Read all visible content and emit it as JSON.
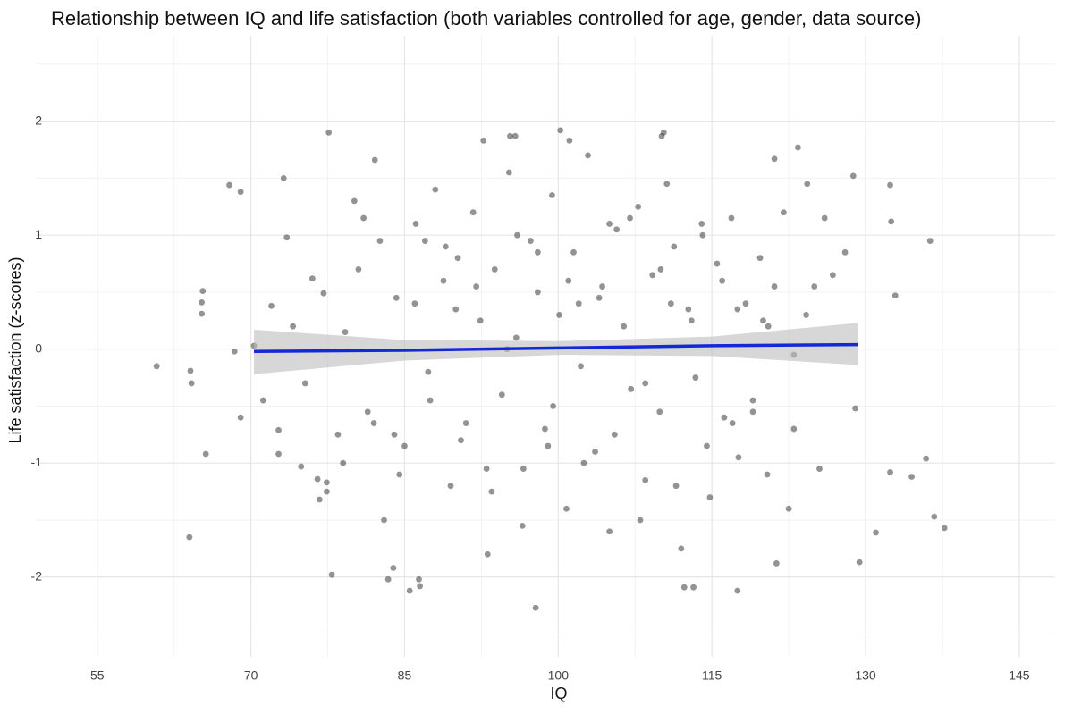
{
  "chart_data": {
    "type": "scatter",
    "title": "Relationship between IQ and life satisfaction (both variables controlled for age, gender, data source)",
    "x_label": "IQ",
    "y_label": "Life satisfaction (z-scores)",
    "xlim": [
      49,
      148.5
    ],
    "ylim": [
      -2.7,
      2.75
    ],
    "xticks": [
      55,
      70,
      85,
      100,
      115,
      130,
      145
    ],
    "yticks": [
      -2,
      -1,
      0,
      1,
      2
    ],
    "xminor": [
      62.5,
      77.5,
      92.5,
      107.5,
      122.5,
      137.5
    ],
    "yminor": [
      -2.5,
      -1.5,
      -0.5,
      0.5,
      1.5,
      2.5
    ],
    "grid": true,
    "color": "#3a3a3a",
    "x": [
      60.8,
      64.1,
      64.2,
      64.0,
      65.3,
      65.2,
      65.2,
      65.6,
      67.9,
      69.0,
      68.4,
      69.0,
      70.3,
      73.2,
      73.5,
      72.7,
      72.7,
      77.6,
      77.9,
      77.1,
      74.9,
      76.5,
      76.7,
      77.4,
      77.4,
      82.1,
      83.4,
      83.9,
      86.5,
      86.4,
      85.5,
      92.7,
      95.3,
      95.8,
      100.2,
      101.1,
      97.8,
      110.1,
      110.3,
      121.1,
      123.4,
      124.3,
      128.8,
      132.4,
      132.5,
      132.9,
      136.3,
      131.0,
      132.4,
      134.5,
      135.9,
      136.7,
      137.7,
      129.4,
      129.0,
      117.5,
      121.3,
      112.3,
      113.2,
      71.2,
      72.0,
      74.1,
      75.3,
      76.0,
      78.5,
      79.2,
      80.1,
      81.4,
      82.6,
      83.0,
      84.2,
      85.0,
      86.1,
      87.3,
      88.0,
      88.8,
      89.5,
      90.2,
      91.0,
      91.7,
      92.4,
      93.1,
      93.8,
      94.5,
      95.2,
      95.9,
      96.6,
      97.3,
      98.0,
      98.7,
      99.4,
      100.1,
      100.8,
      101.5,
      102.2,
      102.9,
      103.6,
      104.3,
      105.0,
      105.7,
      106.4,
      107.1,
      107.8,
      108.5,
      109.2,
      109.9,
      110.6,
      111.3,
      112.0,
      112.7,
      113.4,
      114.1,
      114.8,
      115.5,
      116.2,
      116.9,
      117.6,
      118.3,
      119.0,
      119.7,
      120.4,
      121.1,
      122.0,
      123.0,
      124.2,
      125.5,
      126.8,
      128.0,
      79.0,
      80.5,
      82.0,
      84.5,
      86.0,
      87.5,
      89.0,
      90.5,
      92.0,
      93.5,
      95.0,
      96.5,
      98.0,
      99.5,
      101.0,
      102.5,
      104.0,
      105.5,
      107.0,
      108.5,
      110.0,
      111.5,
      113.0,
      114.5,
      116.0,
      117.5,
      119.0,
      120.5,
      122.5,
      125.0,
      81.0,
      84.0,
      87.0,
      90.0,
      93.0,
      96.0,
      99.0,
      102.0,
      105.0,
      108.0,
      111.0,
      114.0,
      117.0,
      120.0,
      123.0,
      126.0
    ],
    "values": [
      -0.15,
      -0.19,
      -0.3,
      -1.65,
      0.51,
      0.41,
      0.31,
      -0.92,
      1.44,
      1.38,
      -0.02,
      -0.6,
      0.03,
      1.5,
      0.98,
      -0.71,
      -0.92,
      1.9,
      -1.98,
      0.49,
      -1.03,
      -1.14,
      -1.32,
      -1.17,
      -1.25,
      1.66,
      -2.02,
      -1.92,
      -2.08,
      -2.02,
      -2.12,
      1.83,
      1.87,
      1.87,
      1.92,
      1.83,
      -2.27,
      1.87,
      1.9,
      1.67,
      1.77,
      1.45,
      1.52,
      1.44,
      1.12,
      0.47,
      0.95,
      -1.61,
      -1.08,
      -1.12,
      -0.96,
      -1.47,
      -1.57,
      -1.87,
      -0.52,
      -2.12,
      -1.88,
      -2.09,
      -2.09,
      -0.45,
      0.38,
      0.2,
      -0.3,
      0.62,
      -0.75,
      0.15,
      1.3,
      -0.55,
      0.95,
      -1.5,
      0.45,
      -0.85,
      1.1,
      -0.2,
      1.4,
      0.6,
      -1.2,
      0.8,
      -0.65,
      1.2,
      0.25,
      -1.8,
      0.7,
      -0.4,
      1.55,
      0.1,
      -1.05,
      0.95,
      0.5,
      -0.7,
      1.35,
      0.3,
      -1.4,
      0.85,
      -0.15,
      1.7,
      -0.9,
      0.55,
      -1.6,
      1.05,
      0.2,
      -0.35,
      1.25,
      -1.15,
      0.65,
      -0.55,
      1.45,
      0.9,
      -1.75,
      0.35,
      -0.25,
      1.0,
      -1.3,
      0.75,
      -0.6,
      1.15,
      -0.95,
      0.4,
      -0.45,
      0.8,
      -1.1,
      0.55,
      1.2,
      -0.7,
      0.3,
      -1.05,
      0.65,
      0.85,
      -1.0,
      0.7,
      -0.65,
      -1.1,
      0.4,
      -0.45,
      0.9,
      -0.8,
      0.55,
      -1.25,
      0.0,
      -1.55,
      0.85,
      -0.5,
      0.6,
      -1.0,
      0.45,
      -0.75,
      1.15,
      -0.3,
      0.7,
      -1.2,
      0.25,
      -0.85,
      0.6,
      0.35,
      -0.55,
      0.2,
      -1.4,
      0.55,
      1.15,
      -0.75,
      0.95,
      0.35,
      -1.05,
      1.0,
      -0.85,
      0.4,
      1.1,
      -1.5,
      0.4,
      1.1,
      -0.65,
      0.25,
      -0.05,
      1.15
    ],
    "fit": {
      "color": "#1429d6",
      "band_color": "#bdbdbd",
      "x": [
        70.3,
        85,
        100,
        115,
        129.3
      ],
      "y": [
        -0.02,
        -0.01,
        0.01,
        0.03,
        0.04
      ],
      "lower": [
        -0.22,
        -0.1,
        -0.05,
        -0.06,
        -0.14
      ],
      "upper": [
        0.17,
        0.08,
        0.07,
        0.11,
        0.23
      ]
    }
  }
}
